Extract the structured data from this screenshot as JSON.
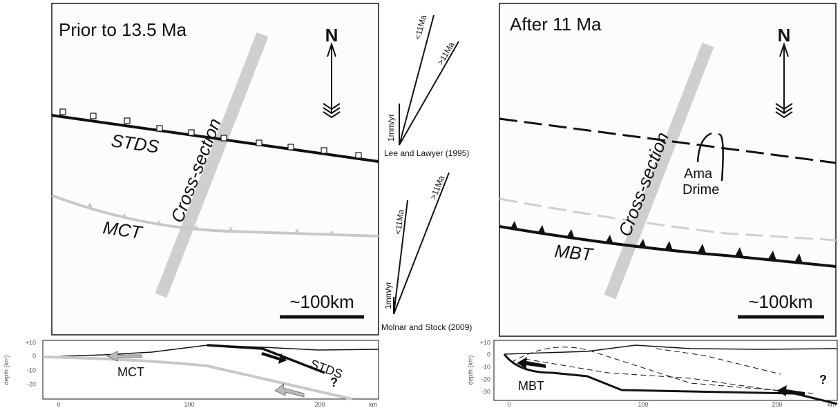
{
  "left_map": {
    "title": "Prior to 13.5 Ma",
    "north": "N",
    "upper_fault": "STDS",
    "lower_fault": "MCT",
    "section_label": "Cross-section",
    "scale": "~100km"
  },
  "rate_diagrams": [
    {
      "young": "<11Ma",
      "old": ">11Ma",
      "scale": "1mm/yr",
      "source": "Lee and Lawyer (1995)"
    },
    {
      "young": "<11Ma",
      "old": ">11Ma",
      "scale": "1mm/yr",
      "source": "Molnar and  Stock (2009)"
    }
  ],
  "right_map": {
    "title": "After 11 Ma",
    "north": "N",
    "section_label": "Cross-section",
    "feature_line1": "Ama",
    "feature_line2": "Drime",
    "fault": "MBT",
    "scale": "~100km"
  },
  "left_section": {
    "y_ticks": [
      "+10",
      "0",
      "-10",
      "-20"
    ],
    "y_label": "depth (km)",
    "x_ticks": [
      "0",
      "100",
      "200"
    ],
    "x_unit": "km",
    "fault_a": "MCT",
    "fault_b": "STDS",
    "query": "?"
  },
  "right_section": {
    "y_ticks": [
      "+10",
      "0",
      "-10",
      "-20",
      "-30"
    ],
    "y_label": "depth (km)",
    "x_ticks": [
      "0",
      "100",
      "200"
    ],
    "x_unit": "km",
    "fault": "MBT",
    "query": "?"
  }
}
